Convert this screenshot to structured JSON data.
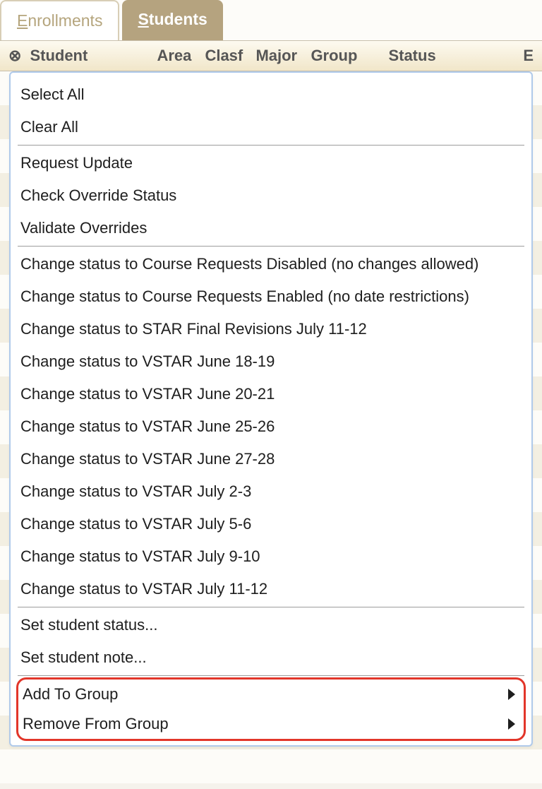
{
  "tabs": {
    "enrollments": "Enrollments",
    "students": "Students"
  },
  "header": {
    "student": "Student",
    "area": "Area",
    "clasf": "Clasf",
    "major": "Major",
    "group": "Group",
    "status": "Status",
    "last": "E"
  },
  "menu": {
    "group1": [
      "Select All",
      "Clear All"
    ],
    "group2": [
      "Request Update",
      "Check Override Status",
      "Validate Overrides"
    ],
    "group3": [
      "Change status to Course Requests Disabled (no changes allowed)",
      "Change status to Course Requests Enabled (no date restrictions)",
      "Change status to STAR Final Revisions July 11-12",
      "Change status to VSTAR June 18-19",
      "Change status to VSTAR June 20-21",
      "Change status to VSTAR June 25-26",
      "Change status to VSTAR June 27-28",
      "Change status to VSTAR July 2-3",
      "Change status to VSTAR July 5-6",
      "Change status to VSTAR July 9-10",
      "Change status to VSTAR July 11-12"
    ],
    "group4": [
      "Set student status...",
      "Set student note..."
    ],
    "group5": [
      "Add To Group",
      "Remove From Group"
    ]
  },
  "colors": {
    "tab_active_bg": "#b5a37f",
    "tab_inactive_text": "#b5a57d",
    "header_text": "#565656",
    "menu_border": "#b0caea",
    "highlight_border": "#e2362a"
  }
}
